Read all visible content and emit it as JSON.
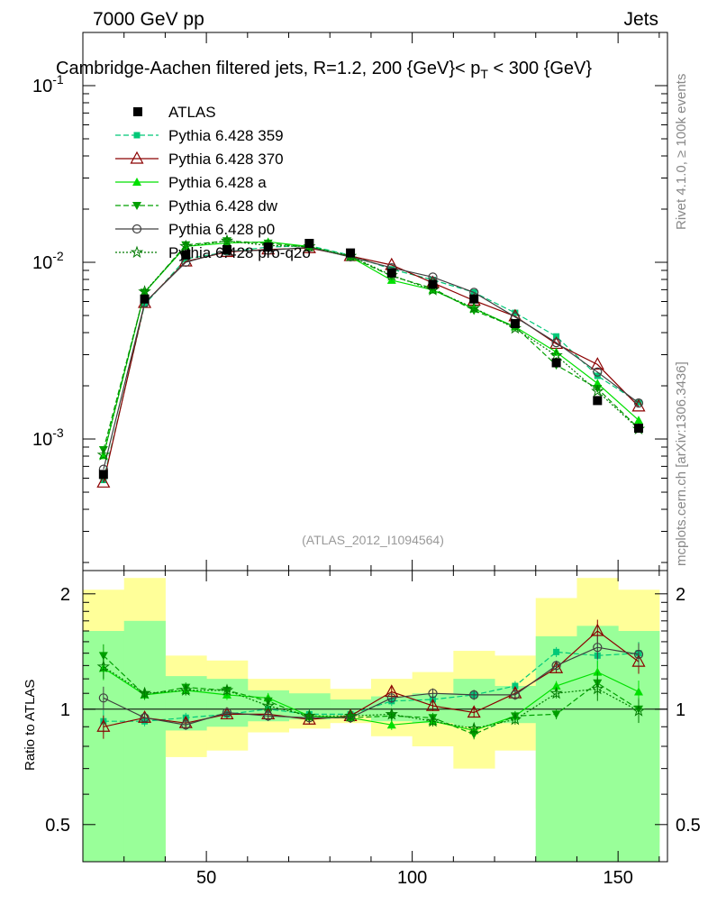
{
  "header": {
    "left": "7000 GeV pp",
    "right": "Jets",
    "title": "Cambridge-Aachen filtered jets, R=1.2, 200 {GeV}< p_T < 300 {GeV}",
    "side_rivet": "Rivet 4.1.0, ≥ 100k events",
    "side_mcplots": "mcplots.cern.ch [arXiv:1306.3436]",
    "analysis_id": "(ATLAS_2012_I1094564)"
  },
  "colors": {
    "atlas": "#000000",
    "p359": "#00c878",
    "p370": "#8b0000",
    "pa": "#00e000",
    "pdw": "#00a000",
    "pp0": "#404040",
    "pq2o": "#007a00",
    "band_yellow": "#ffff99",
    "band_green": "#99ff99"
  },
  "chart_data": {
    "type": "line",
    "x": [
      25,
      35,
      45,
      55,
      65,
      75,
      85,
      95,
      105,
      115,
      125,
      135,
      145,
      155
    ],
    "xlim": [
      20,
      162
    ],
    "x_ticks": [
      50,
      100,
      150
    ],
    "main": {
      "yscale": "log",
      "ylim": [
        0.00018,
        0.2
      ],
      "y_tick_labels": [
        "10^{-1}",
        "10^{-2}",
        "10^{-3}"
      ],
      "y_tick_values": [
        0.1,
        0.01,
        0.001
      ]
    },
    "ratio": {
      "ylabel": "Ratio to ATLAS",
      "ylim": [
        0.4,
        2.3
      ],
      "y_ticks": [
        0.5,
        1,
        2
      ],
      "y_tick_labels": [
        "0.5",
        "1",
        "2"
      ]
    },
    "atlas": {
      "name": "ATLAS",
      "values": [
        0.00063,
        0.0062,
        0.011,
        0.0118,
        0.0122,
        0.0128,
        0.0113,
        0.0087,
        0.0075,
        0.0062,
        0.0045,
        0.0027,
        0.00165,
        0.00115
      ],
      "band_total": [
        [
          0.45,
          2.05
        ],
        [
          0.3,
          2.2
        ],
        [
          0.75,
          1.38
        ],
        [
          0.78,
          1.34
        ],
        [
          0.87,
          1.2
        ],
        [
          0.89,
          1.2
        ],
        [
          0.92,
          1.13
        ],
        [
          0.85,
          1.2
        ],
        [
          0.8,
          1.25
        ],
        [
          0.7,
          1.42
        ],
        [
          0.78,
          1.38
        ],
        [
          0.55,
          1.95
        ],
        [
          0.3,
          2.2
        ],
        [
          0.45,
          2.05
        ]
      ],
      "band_stat": [
        [
          0.3,
          1.6
        ],
        [
          0.3,
          1.7
        ],
        [
          0.88,
          1.22
        ],
        [
          0.9,
          1.2
        ],
        [
          0.93,
          1.12
        ],
        [
          0.94,
          1.1
        ],
        [
          0.96,
          1.06
        ],
        [
          0.93,
          1.08
        ],
        [
          0.92,
          1.1
        ],
        [
          0.9,
          1.2
        ],
        [
          0.92,
          1.15
        ],
        [
          0.3,
          1.55
        ],
        [
          0.3,
          1.65
        ],
        [
          0.3,
          1.6
        ]
      ]
    },
    "series": [
      {
        "name": "Pythia 6.428 359",
        "style": "dash",
        "marker": "square",
        "ratio": [
          0.93,
          0.93,
          0.95,
          0.97,
          1.0,
          0.97,
          0.97,
          1.05,
          1.06,
          1.09,
          1.15,
          1.41,
          1.38,
          1.4
        ]
      },
      {
        "name": "Pythia 6.428 370",
        "style": "solid",
        "marker": "triangle-open",
        "ratio": [
          0.9,
          0.95,
          0.92,
          0.97,
          0.97,
          0.94,
          0.96,
          1.11,
          1.02,
          0.98,
          1.1,
          1.28,
          1.6,
          1.33
        ]
      },
      {
        "name": "Pythia 6.428 a",
        "style": "solid",
        "marker": "triangle",
        "ratio": [
          1.28,
          1.09,
          1.12,
          1.09,
          1.07,
          0.96,
          0.95,
          0.91,
          0.93,
          0.88,
          0.96,
          1.15,
          1.25,
          1.11
        ]
      },
      {
        "name": "Pythia 6.428 dw",
        "style": "dash",
        "marker": "triangle-down",
        "ratio": [
          1.38,
          1.09,
          1.14,
          1.12,
          1.05,
          0.95,
          0.95,
          0.96,
          0.95,
          0.86,
          0.96,
          0.97,
          1.17,
          1.0
        ]
      },
      {
        "name": "Pythia 6.428 p0",
        "style": "solid",
        "marker": "circle-open",
        "ratio": [
          1.07,
          0.95,
          0.91,
          0.98,
          0.96,
          0.95,
          0.95,
          1.07,
          1.1,
          1.09,
          1.09,
          1.3,
          1.45,
          1.39
        ]
      },
      {
        "name": "Pythia 6.428 pro-q2o",
        "style": "dot",
        "marker": "star",
        "ratio": [
          1.29,
          1.1,
          1.12,
          1.12,
          1.02,
          0.96,
          0.96,
          0.97,
          0.93,
          0.89,
          0.94,
          1.1,
          1.13,
          0.99
        ]
      }
    ]
  }
}
